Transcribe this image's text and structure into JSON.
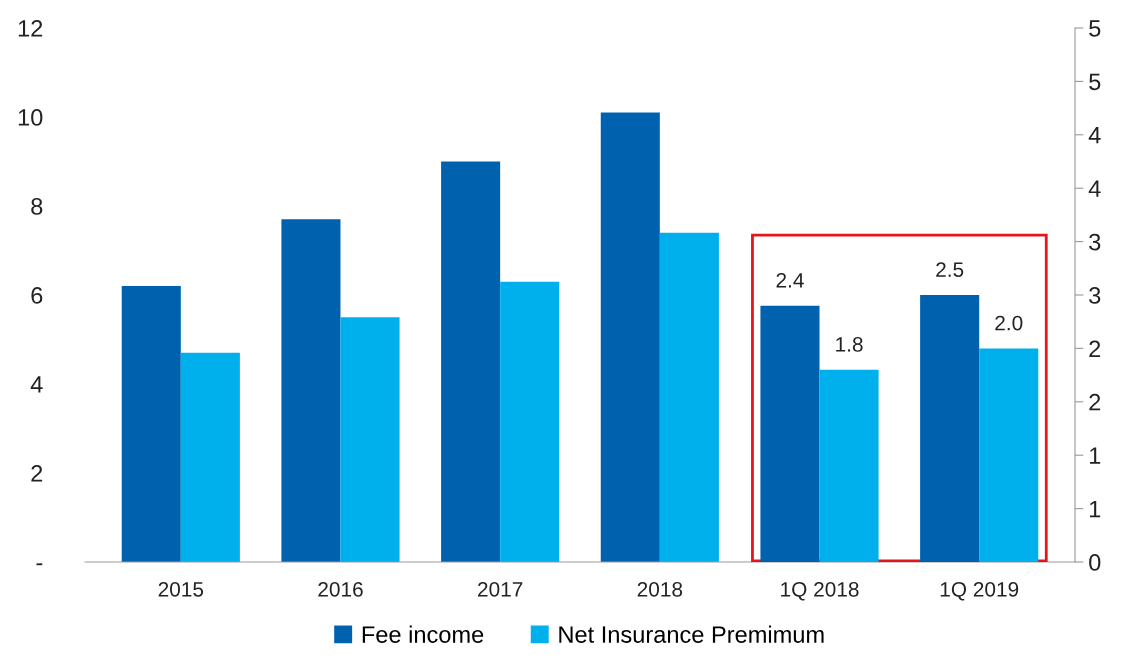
{
  "chart_data": {
    "type": "bar",
    "categories": [
      "2015",
      "2016",
      "2017",
      "2018",
      "1Q 2018",
      "1Q 2019"
    ],
    "series": [
      {
        "name": "Fee income",
        "color": "#0062ae",
        "values": [
          6.2,
          7.7,
          9.0,
          10.1,
          null,
          null
        ]
      },
      {
        "name": "Net Insurance Premimum",
        "color": "#00b0ec",
        "values": [
          4.7,
          5.5,
          6.3,
          7.4,
          null,
          null
        ]
      },
      {
        "color": "#0062ae",
        "axis": "y2",
        "values": [
          null,
          null,
          null,
          null,
          2.4,
          2.5
        ],
        "value_labels": [
          null,
          null,
          null,
          null,
          "2.4",
          "2.5"
        ]
      },
      {
        "color": "#00b0ec",
        "axis": "y2",
        "values": [
          null,
          null,
          null,
          null,
          1.8,
          2.0
        ],
        "value_labels": [
          null,
          null,
          null,
          null,
          "1.8",
          "2.0"
        ]
      }
    ],
    "ylim": [
      0,
      12
    ],
    "yticks": [
      {
        "value": 0,
        "label": "-"
      },
      2,
      4,
      6,
      8,
      10,
      12
    ],
    "y2lim": [
      0,
      5
    ],
    "y2ticks": [
      0,
      {
        "value": 0.5,
        "label": "1"
      },
      1,
      {
        "value": 1.5,
        "label": "2"
      },
      2,
      {
        "value": 2.5,
        "label": "3"
      },
      3,
      {
        "value": 3.5,
        "label": "4"
      },
      4,
      {
        "value": 4.5,
        "label": "5"
      },
      5
    ],
    "grid": false,
    "legend": "bottom"
  }
}
